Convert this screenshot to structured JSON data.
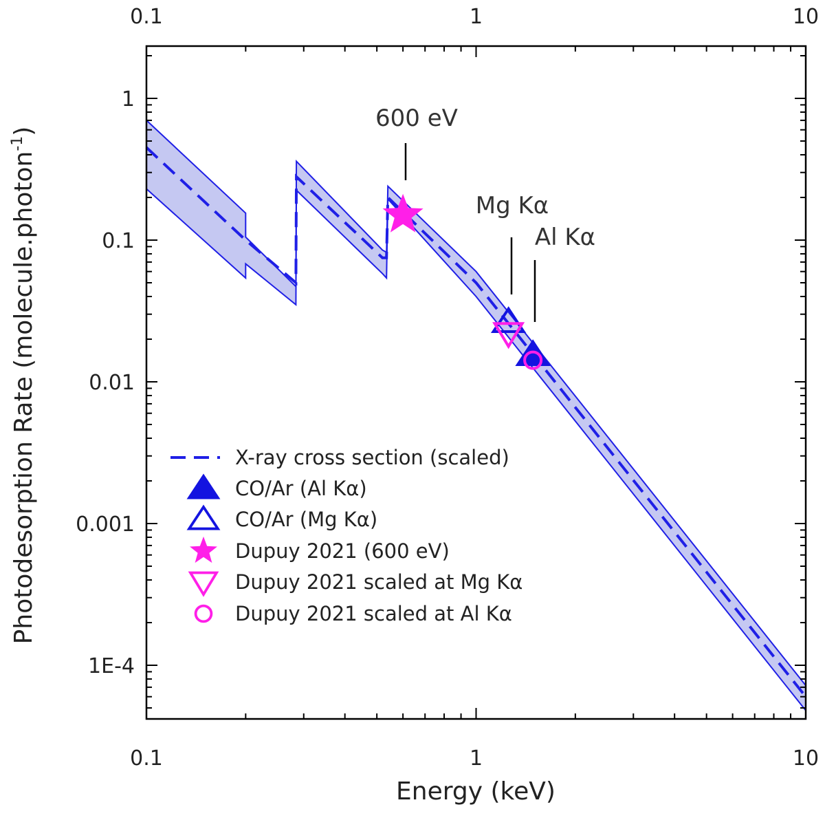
{
  "chart_data": {
    "type": "scatter",
    "title": "",
    "xlabel": "Energy (keV)",
    "ylabel": "Photodesorption Rate (molecule.photon",
    "ylabel_superscript": "-1",
    "ylabel_close": ")",
    "xscale": "log",
    "yscale": "log",
    "xlim": [
      0.1,
      10
    ],
    "ylim": [
      4e-05,
      2
    ],
    "x_ticks": [
      {
        "value": 0.1,
        "label": "0.1"
      },
      {
        "value": 1,
        "label": "1"
      },
      {
        "value": 10,
        "label": "10"
      }
    ],
    "y_ticks": [
      {
        "value": 1,
        "label": "1"
      },
      {
        "value": 0.1,
        "label": "0.1"
      },
      {
        "value": 0.01,
        "label": "0.01"
      },
      {
        "value": 0.001,
        "label": "0.001"
      },
      {
        "value": 0.0001,
        "label": "1E-4"
      }
    ],
    "band": {
      "color": "#c5c8f2",
      "edge_color": "#1f1fe6",
      "upper": [
        [
          0.1,
          0.7
        ],
        [
          0.2,
          0.155
        ],
        [
          0.2,
          0.105
        ],
        [
          0.284,
          0.047
        ],
        [
          0.285,
          0.36
        ],
        [
          0.52,
          0.085
        ],
        [
          0.535,
          0.082
        ],
        [
          0.54,
          0.24
        ],
        [
          1.0,
          0.06
        ],
        [
          10,
          7.2e-05
        ]
      ],
      "lower": [
        [
          0.1,
          0.23
        ],
        [
          0.2,
          0.054
        ],
        [
          0.2,
          0.068
        ],
        [
          0.284,
          0.035
        ],
        [
          0.285,
          0.225
        ],
        [
          0.52,
          0.058
        ],
        [
          0.535,
          0.054
        ],
        [
          0.54,
          0.195
        ],
        [
          1.0,
          0.04
        ],
        [
          10,
          4.8e-05
        ]
      ]
    },
    "series": [
      {
        "name": "X-ray cross section (scaled)",
        "style": "dashed-line",
        "color": "#1f1fe6",
        "points": [
          [
            0.1,
            0.45
          ],
          [
            0.2,
            0.1
          ],
          [
            0.284,
            0.05
          ],
          [
            0.285,
            0.28
          ],
          [
            0.52,
            0.075
          ],
          [
            0.535,
            0.075
          ],
          [
            0.54,
            0.2
          ],
          [
            1.0,
            0.05
          ],
          [
            10,
            6e-05
          ]
        ]
      },
      {
        "name": "CO/Ar (Al Kα)",
        "marker": "filled-triangle",
        "color": "#1414e0",
        "points": [
          [
            1.487,
            0.0155
          ]
        ]
      },
      {
        "name": "CO/Ar (Mg Kα)",
        "marker": "open-triangle",
        "color": "#1414e0",
        "points": [
          [
            1.254,
            0.0265
          ]
        ]
      },
      {
        "name": "Dupuy 2021 (600 eV)",
        "marker": "star",
        "color": "#ff1fe8",
        "points": [
          [
            0.6,
            0.15
          ]
        ]
      },
      {
        "name": "Dupuy 2021 scaled at Mg Kα",
        "marker": "open-down-triangle",
        "color": "#ff1fe8",
        "points": [
          [
            1.254,
            0.022
          ]
        ]
      },
      {
        "name": "Dupuy 2021 scaled at Al Kα",
        "marker": "open-circle",
        "color": "#ff1fe8",
        "points": [
          [
            1.487,
            0.0142
          ]
        ]
      }
    ],
    "annotations": [
      {
        "text": "600 eV",
        "x": 0.6
      },
      {
        "text": "Mg Kα",
        "x": 1.254
      },
      {
        "text": "Al Kα",
        "x": 1.487
      }
    ],
    "legend": {
      "position": "lower-left"
    },
    "grid": false
  }
}
